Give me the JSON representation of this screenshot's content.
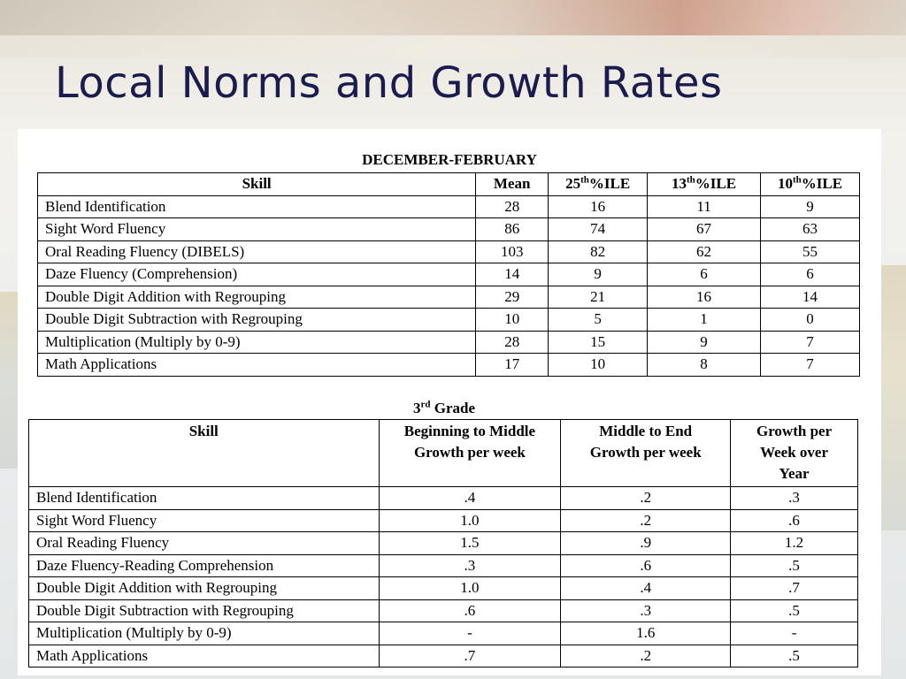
{
  "slide": {
    "title": "Local Norms and Growth Rates"
  },
  "table1": {
    "caption": "DECEMBER-FEBRUARY",
    "headers": {
      "skill": "Skill",
      "mean": "Mean",
      "p25": {
        "pre": "25",
        "sup": "th",
        "post": "%ILE"
      },
      "p13": {
        "pre": "13",
        "sup": "th",
        "post": "%ILE"
      },
      "p10": {
        "pre": "10",
        "sup": "th",
        "post": "%ILE"
      }
    },
    "rows": [
      {
        "skill": "Blend Identification",
        "mean": "28",
        "p25": "16",
        "p13": "11",
        "p10": "9"
      },
      {
        "skill": "Sight Word Fluency",
        "mean": "86",
        "p25": "74",
        "p13": "67",
        "p10": "63"
      },
      {
        "skill": "Oral Reading Fluency (DIBELS)",
        "mean": "103",
        "p25": "82",
        "p13": "62",
        "p10": "55"
      },
      {
        "skill": "Daze Fluency (Comprehension)",
        "mean": "14",
        "p25": "9",
        "p13": "6",
        "p10": "6"
      },
      {
        "skill": "Double Digit Addition with Regrouping",
        "mean": "29",
        "p25": "21",
        "p13": "16",
        "p10": "14"
      },
      {
        "skill": "Double Digit Subtraction with Regrouping",
        "mean": "10",
        "p25": "5",
        "p13": "1",
        "p10": "0"
      },
      {
        "skill": "Multiplication  (Multiply by 0-9)",
        "mean": "28",
        "p25": "15",
        "p13": "9",
        "p10": "7"
      },
      {
        "skill": "Math Applications",
        "mean": "17",
        "p25": "10",
        "p13": "8",
        "p10": "7"
      }
    ]
  },
  "table2": {
    "caption": {
      "pre": "3",
      "sup": "rd",
      "post": " Grade"
    },
    "headers": {
      "skill": "Skill",
      "bm": [
        "Beginning to Middle",
        "Growth per week"
      ],
      "me": [
        "Middle to End",
        "Growth per week"
      ],
      "yr": [
        "Growth per",
        "Week over",
        "Year"
      ]
    },
    "rows": [
      {
        "skill": "Blend Identification",
        "bm": ".4",
        "me": ".2",
        "yr": ".3"
      },
      {
        "skill": "Sight Word Fluency",
        "bm": "1.0",
        "me": ".2",
        "yr": ".6"
      },
      {
        "skill": "Oral Reading Fluency",
        "bm": "1.5",
        "me": ".9",
        "yr": "1.2"
      },
      {
        "skill": "Daze Fluency-Reading Comprehension",
        "bm": ".3",
        "me": ".6",
        "yr": ".5"
      },
      {
        "skill": "Double Digit Addition with Regrouping",
        "bm": "1.0",
        "me": ".4",
        "yr": ".7"
      },
      {
        "skill": "Double Digit Subtraction with Regrouping",
        "bm": ".6",
        "me": ".3",
        "yr": ".5"
      },
      {
        "skill": "Multiplication  (Multiply by 0-9)",
        "bm": "-",
        "me": "1.6",
        "yr": "-"
      },
      {
        "skill": "Math Applications",
        "bm": ".7",
        "me": ".2",
        "yr": ".5"
      }
    ]
  }
}
